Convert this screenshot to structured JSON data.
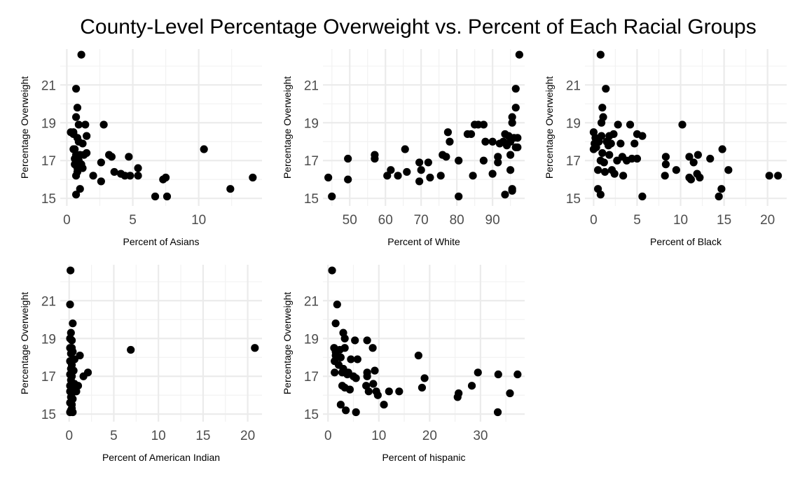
{
  "title": "County-Level Percentage Overweight vs. Percent of Each Racial Groups",
  "chart_data": [
    {
      "type": "scatter",
      "xlabel": "Percent of Asians",
      "ylabel": "Percentage Overweight",
      "xlim": [
        -0.5,
        14.8
      ],
      "ylim": [
        14.6,
        22.9
      ],
      "xticks": [
        0,
        5,
        10
      ],
      "yticks": [
        15,
        17,
        19,
        21
      ],
      "grid": true,
      "x": [
        1.1,
        0.7,
        0.8,
        0.7,
        0.5,
        0.9,
        1.4,
        0.3,
        0.5,
        0.8,
        1.5,
        0.9,
        1.2,
        0.5,
        0.6,
        0.7,
        1.0,
        1.3,
        0.6,
        0.9,
        1.5,
        2.8,
        0.6,
        1.1,
        0.8,
        2.0,
        3.2,
        3.4,
        4.7,
        0.8,
        1.2,
        2.6,
        3.6,
        4.1,
        4.4,
        4.8,
        5.4,
        5.4,
        0.7,
        1.0,
        2.6,
        7.3,
        7.5,
        7.6,
        10.4,
        12.4,
        14.1,
        6.7,
        0.7
      ],
      "y": [
        22.6,
        20.8,
        19.8,
        19.3,
        18.5,
        18.9,
        18.9,
        18.5,
        18.4,
        18.2,
        18.3,
        18.0,
        17.9,
        17.6,
        17.6,
        17.3,
        17.3,
        17.3,
        17.1,
        17.0,
        17.4,
        18.9,
        16.8,
        16.8,
        16.4,
        16.2,
        17.3,
        17.2,
        17.2,
        16.6,
        16.6,
        16.9,
        16.4,
        16.3,
        16.2,
        16.2,
        16.6,
        16.2,
        16.2,
        15.5,
        15.9,
        16.0,
        16.1,
        15.1,
        17.6,
        15.5,
        16.1,
        15.1,
        15.2
      ]
    },
    {
      "type": "scatter",
      "xlabel": "Percent of White",
      "ylabel": "Percentage Overweight",
      "xlim": [
        42.5,
        99.0
      ],
      "ylim": [
        14.6,
        22.9
      ],
      "xticks": [
        50,
        60,
        70,
        80,
        90
      ],
      "yticks": [
        15,
        17,
        19,
        21
      ],
      "grid": true,
      "x": [
        97.5,
        96.5,
        96.5,
        95.5,
        95.5,
        97.0,
        95.0,
        96.0,
        94.5,
        95.0,
        96.5,
        93.5,
        93.0,
        94.0,
        95.0,
        97.0,
        90.0,
        92.0,
        77.5,
        85.0,
        87.5,
        86.0,
        84.0,
        78.0,
        83.0,
        76.0,
        88.0,
        77.0,
        72.0,
        65.5,
        69.5,
        80.5,
        70.0,
        57.0,
        57.0,
        49.5,
        44.0,
        49.5,
        61.5,
        60.5,
        63.5,
        66.0,
        69.5,
        72.5,
        75.5,
        84.5,
        87.5,
        91.5,
        91.5,
        90.0,
        95.0,
        45.0,
        80.5,
        95.5,
        93.5,
        95.5
      ],
      "y": [
        22.6,
        20.8,
        19.8,
        19.3,
        19.0,
        18.2,
        18.2,
        18.2,
        18.3,
        18.0,
        17.7,
        18.4,
        18.0,
        17.8,
        17.3,
        17.7,
        18.0,
        17.9,
        18.5,
        18.9,
        18.9,
        18.9,
        18.4,
        18.0,
        18.4,
        17.3,
        18.0,
        17.2,
        16.9,
        17.6,
        16.9,
        17.0,
        16.5,
        17.3,
        17.1,
        17.1,
        16.1,
        16.0,
        16.5,
        16.2,
        16.2,
        16.4,
        15.9,
        16.1,
        16.2,
        16.2,
        17.0,
        17.2,
        16.9,
        16.3,
        16.5,
        15.1,
        15.1,
        15.5,
        15.2,
        15.4
      ]
    },
    {
      "type": "scatter",
      "xlabel": "Percent of Black",
      "ylabel": "Percentage Overweight",
      "xlim": [
        -1.0,
        22.2
      ],
      "ylim": [
        14.6,
        22.9
      ],
      "xticks": [
        0,
        5,
        10,
        15,
        20
      ],
      "yticks": [
        15,
        17,
        19,
        21
      ],
      "grid": true,
      "x": [
        0.8,
        1.4,
        1.0,
        1.1,
        0.9,
        0.0,
        2.8,
        4.2,
        10.2,
        0.2,
        0.9,
        1.8,
        2.3,
        1.5,
        5.0,
        5.6,
        0.1,
        0.6,
        1.7,
        2.0,
        3.1,
        4.7,
        0.0,
        1.0,
        1.8,
        3.3,
        4.4,
        3.8,
        5.0,
        0.3,
        0.8,
        1.2,
        2.7,
        2.1,
        0.5,
        1.3,
        2.4,
        3.4,
        8.3,
        8.3,
        11.0,
        12.0,
        11.5,
        13.4,
        9.5,
        14.8,
        15.5,
        11.9,
        12.2,
        8.2,
        11.0,
        11.2,
        14.4,
        14.7,
        20.2,
        21.2,
        5.6,
        0.5,
        0.8
      ],
      "y": [
        22.6,
        20.8,
        19.8,
        19.3,
        19.0,
        18.5,
        18.9,
        18.9,
        18.9,
        18.2,
        18.3,
        18.3,
        18.4,
        18.0,
        18.4,
        18.3,
        17.9,
        18.0,
        17.8,
        17.9,
        17.9,
        17.9,
        17.6,
        17.4,
        17.3,
        17.2,
        17.1,
        17.0,
        17.1,
        17.7,
        17.0,
        16.9,
        17.0,
        16.5,
        16.5,
        16.4,
        16.3,
        16.2,
        17.2,
        16.8,
        17.2,
        17.3,
        16.9,
        17.1,
        16.5,
        17.6,
        16.5,
        16.3,
        16.1,
        16.2,
        16.1,
        16.0,
        15.1,
        15.5,
        16.2,
        16.2,
        15.1,
        15.5,
        15.2
      ]
    },
    {
      "type": "scatter",
      "xlabel": "Percent of American Indian",
      "ylabel": "Percentage Overweight",
      "xlim": [
        -1.0,
        21.6
      ],
      "ylim": [
        14.6,
        22.9
      ],
      "xticks": [
        0,
        5,
        10,
        15,
        20
      ],
      "yticks": [
        15,
        17,
        19,
        21
      ],
      "grid": true,
      "x": [
        0.15,
        0.1,
        0.4,
        0.2,
        0.1,
        0.3,
        0.1,
        0.3,
        0.4,
        0.2,
        1.2,
        0.6,
        0.1,
        0.3,
        0.2,
        0.5,
        0.1,
        0.3,
        0.2,
        0.4,
        0.1,
        0.3,
        0.6,
        0.1,
        0.3,
        0.8,
        2.1,
        1.6,
        1.0,
        0.2,
        0.4,
        0.1,
        0.3,
        0.2,
        0.4,
        0.1,
        0.3,
        0.2,
        6.9,
        20.8
      ],
      "y": [
        22.6,
        20.8,
        19.8,
        19.3,
        19.0,
        18.9,
        18.5,
        18.5,
        18.3,
        18.2,
        18.1,
        17.9,
        17.8,
        17.6,
        17.4,
        17.3,
        17.1,
        17.0,
        16.8,
        16.6,
        16.5,
        16.4,
        16.6,
        16.2,
        16.1,
        16.2,
        17.2,
        17.0,
        16.5,
        15.9,
        15.8,
        15.6,
        15.5,
        15.2,
        15.1,
        15.1,
        15.3,
        15.2,
        18.4,
        18.5
      ]
    },
    {
      "type": "scatter",
      "xlabel": "Percent of hispanic",
      "ylabel": "Percentage Overweight",
      "xlim": [
        -1.0,
        38.7
      ],
      "ylim": [
        14.6,
        22.9
      ],
      "xticks": [
        0,
        10,
        20,
        30
      ],
      "yticks": [
        15,
        17,
        19,
        21
      ],
      "grid": true,
      "x": [
        0.8,
        1.8,
        1.5,
        3.0,
        3.3,
        5.3,
        7.7,
        8.8,
        1.2,
        1.5,
        2.3,
        3.3,
        1.5,
        2.5,
        4.5,
        5.8,
        9.2,
        17.8,
        1.3,
        2.1,
        3.0,
        4.0,
        7.7,
        8.9,
        1.3,
        2.8,
        3.8,
        5.0,
        7.7,
        19.0,
        5.5,
        2.8,
        3.3,
        4.3,
        8.0,
        9.5,
        12.0,
        7.5,
        9.8,
        14.0,
        18.5,
        3.5,
        2.5,
        5.5,
        11.0,
        25.5,
        25.7,
        28.3,
        29.5,
        33.5,
        35.8,
        37.3,
        33.4
      ],
      "y": [
        22.6,
        20.8,
        19.8,
        19.3,
        19.0,
        18.9,
        18.9,
        18.5,
        18.5,
        18.3,
        18.4,
        18.5,
        18.1,
        18.0,
        17.9,
        17.9,
        17.3,
        18.1,
        17.8,
        17.6,
        17.4,
        17.2,
        17.2,
        16.6,
        17.2,
        17.2,
        17.1,
        17.0,
        17.0,
        16.9,
        16.9,
        16.5,
        16.4,
        16.3,
        16.2,
        16.2,
        16.2,
        16.5,
        16.0,
        16.2,
        16.4,
        15.2,
        15.5,
        15.1,
        15.5,
        15.9,
        16.1,
        16.5,
        17.2,
        17.1,
        16.1,
        17.1,
        15.1
      ]
    }
  ]
}
